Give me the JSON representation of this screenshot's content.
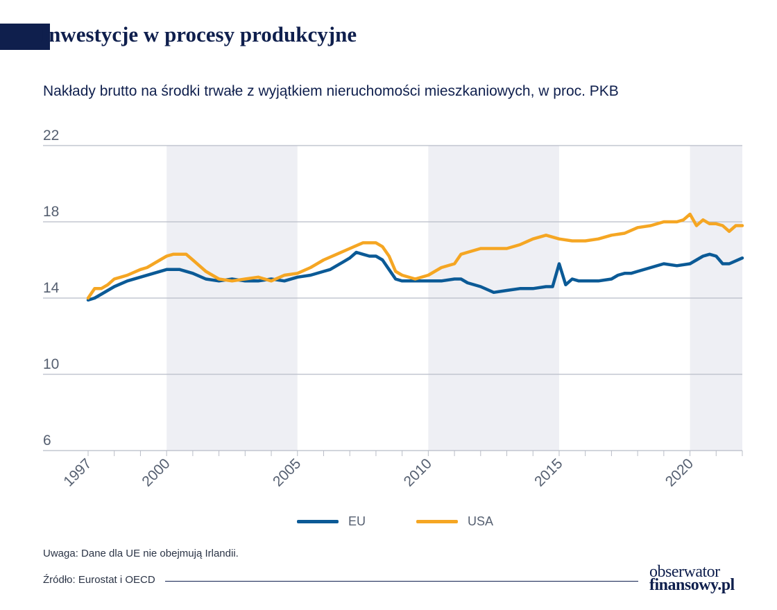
{
  "header": {
    "title": "Inwestycje w procesy produkcyjne",
    "subtitle": "Nakłady brutto na środki trwałe z wyjątkiem nieruchomości mieszkaniowych, w proc. PKB"
  },
  "footer": {
    "note": "Uwaga: Dane dla UE nie obejmują Irlandii.",
    "source": "Źródło: Eurostat i OECD",
    "logo_line1": "obserwator",
    "logo_line2": "finansowy.pl"
  },
  "chart_data": {
    "type": "line",
    "yticks": [
      "22",
      "18",
      "14",
      "10",
      "6"
    ],
    "ylim": [
      6,
      22
    ],
    "xlim": [
      1997,
      2022
    ],
    "xticks": [
      "1997",
      "2000",
      "2005",
      "2010",
      "2015",
      "2020"
    ],
    "grid": true,
    "legend_position": "bottom",
    "shaded_periods": [
      [
        2000,
        2005
      ],
      [
        2010,
        2015
      ],
      [
        2020,
        2022
      ]
    ],
    "colors": {
      "EU": "#0b5a96",
      "USA": "#f5a623",
      "shade": "#eeeff4",
      "grid": "#b8bcc6"
    },
    "series": [
      {
        "name": "EU",
        "x": [
          1997,
          1997.25,
          1997.5,
          1997.75,
          1998,
          1998.5,
          1999,
          1999.5,
          2000,
          2000.25,
          2000.5,
          2001,
          2001.5,
          2002,
          2002.5,
          2003,
          2003.5,
          2004,
          2004.5,
          2005,
          2005.5,
          2006,
          2006.25,
          2006.5,
          2006.75,
          2007,
          2007.25,
          2007.5,
          2007.75,
          2008,
          2008.25,
          2008.5,
          2008.75,
          2009,
          2009.5,
          2010,
          2010.5,
          2011,
          2011.25,
          2011.5,
          2012,
          2012.5,
          2013,
          2013.5,
          2014,
          2014.5,
          2014.75,
          2015,
          2015.25,
          2015.5,
          2015.75,
          2016,
          2016.5,
          2017,
          2017.25,
          2017.5,
          2017.75,
          2018,
          2018.5,
          2019,
          2019.5,
          2020,
          2020.25,
          2020.5,
          2020.75,
          2021,
          2021.25,
          2021.5,
          2022
        ],
        "values": [
          13.9,
          14.0,
          14.2,
          14.4,
          14.6,
          14.9,
          15.1,
          15.3,
          15.5,
          15.5,
          15.5,
          15.3,
          15.0,
          14.9,
          15.0,
          14.9,
          14.9,
          15.0,
          14.9,
          15.1,
          15.2,
          15.4,
          15.5,
          15.7,
          15.9,
          16.1,
          16.4,
          16.3,
          16.2,
          16.2,
          16.0,
          15.5,
          15.0,
          14.9,
          14.9,
          14.9,
          14.9,
          15.0,
          15.0,
          14.8,
          14.6,
          14.3,
          14.4,
          14.5,
          14.5,
          14.6,
          14.6,
          15.8,
          14.7,
          15.0,
          14.9,
          14.9,
          14.9,
          15.0,
          15.2,
          15.3,
          15.3,
          15.4,
          15.6,
          15.8,
          15.7,
          15.8,
          16.0,
          16.2,
          16.3,
          16.2,
          15.8,
          15.8,
          16.1
        ]
      },
      {
        "name": "USA",
        "x": [
          1997,
          1997.25,
          1997.5,
          1997.75,
          1998,
          1998.25,
          1998.5,
          1999,
          1999.25,
          1999.5,
          1999.75,
          2000,
          2000.25,
          2000.5,
          2000.75,
          2001,
          2001.5,
          2002,
          2002.5,
          2003,
          2003.5,
          2004,
          2004.5,
          2005,
          2005.5,
          2006,
          2006.5,
          2007,
          2007.5,
          2008,
          2008.25,
          2008.5,
          2008.75,
          2009,
          2009.5,
          2010,
          2010.5,
          2011,
          2011.25,
          2011.5,
          2012,
          2012.5,
          2013,
          2013.5,
          2014,
          2014.5,
          2015,
          2015.5,
          2016,
          2016.5,
          2017,
          2017.5,
          2018,
          2018.5,
          2019,
          2019.25,
          2019.5,
          2019.75,
          2020,
          2020.25,
          2020.5,
          2020.75,
          2021,
          2021.25,
          2021.5,
          2021.75,
          2022
        ],
        "values": [
          14.0,
          14.5,
          14.5,
          14.7,
          15.0,
          15.1,
          15.2,
          15.5,
          15.6,
          15.8,
          16.0,
          16.2,
          16.3,
          16.3,
          16.3,
          16.0,
          15.4,
          15.0,
          14.9,
          15.0,
          15.1,
          14.9,
          15.2,
          15.3,
          15.6,
          16.0,
          16.3,
          16.6,
          16.9,
          16.9,
          16.7,
          16.2,
          15.4,
          15.2,
          15.0,
          15.2,
          15.6,
          15.8,
          16.3,
          16.4,
          16.6,
          16.6,
          16.6,
          16.8,
          17.1,
          17.3,
          17.1,
          17.0,
          17.0,
          17.1,
          17.3,
          17.4,
          17.7,
          17.8,
          18.0,
          18.0,
          18.0,
          18.1,
          18.4,
          17.8,
          18.1,
          17.9,
          17.9,
          17.8,
          17.5,
          17.8,
          17.8
        ]
      }
    ]
  }
}
